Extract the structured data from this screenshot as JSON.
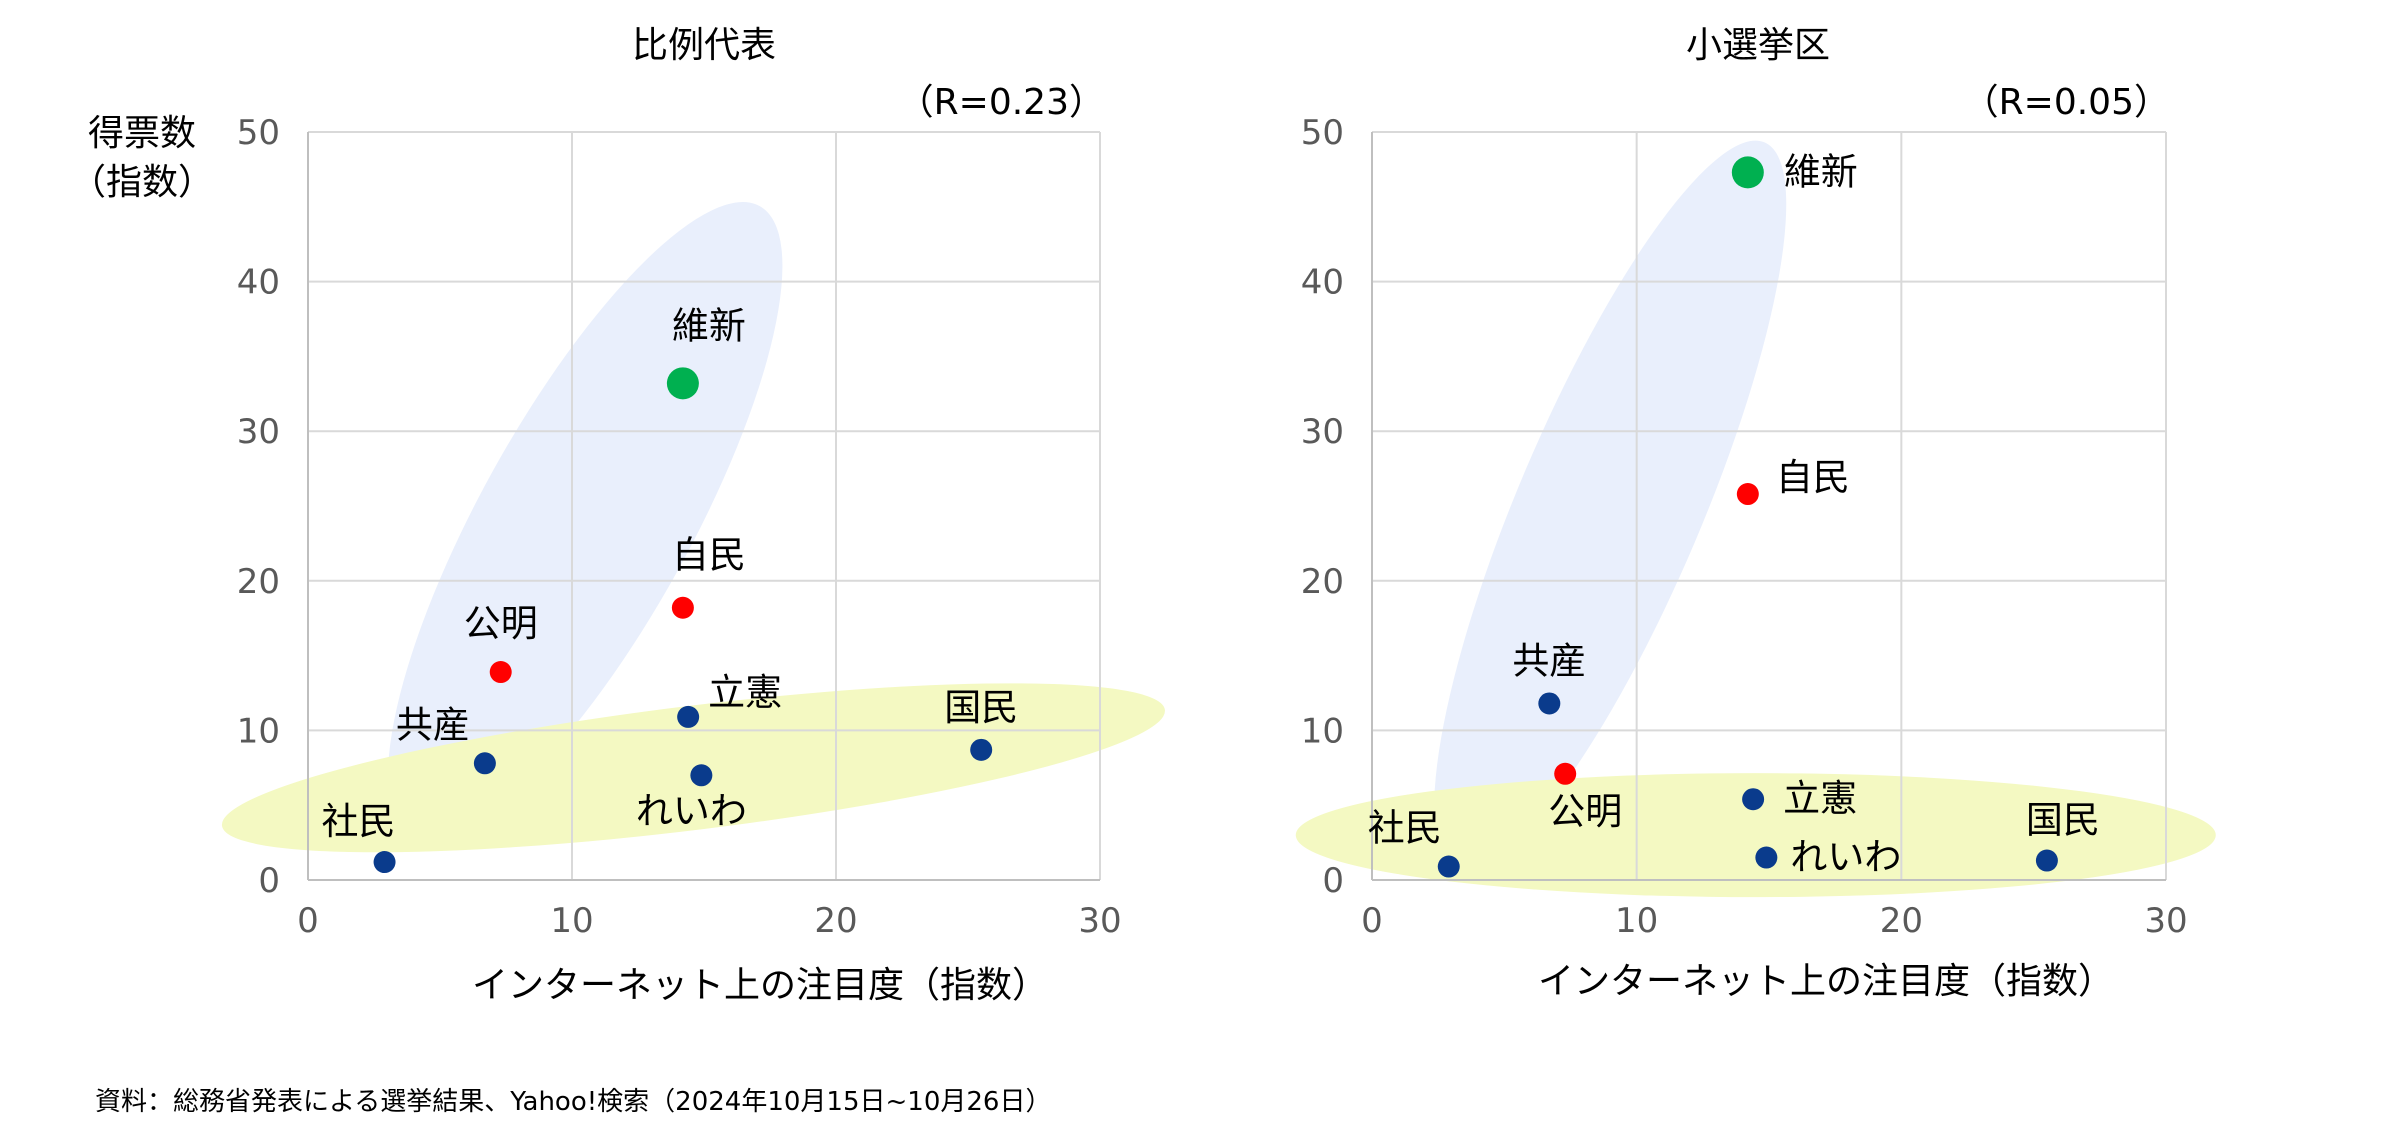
{
  "ylabel_lines": [
    "得票数",
    "（指数）"
  ],
  "source": "資料：総務省発表による選挙結果、Yahoo!検索（2024年10月15日~10月26日）",
  "colors": {
    "navy": "#0a3b8c",
    "red": "#ff0000",
    "green": "#00b050",
    "blue_ellipse": "#e9effc",
    "yellow_ellipse": "#f4f9c2"
  },
  "chart_data": [
    {
      "type": "scatter",
      "title": "比例代表",
      "correlation": "（R=0.23）",
      "xlabel": "インターネット上の注目度（指数）",
      "xlim": [
        0,
        30
      ],
      "ylim": [
        0,
        50
      ],
      "xticks": [
        "0",
        "10",
        "20",
        "30"
      ],
      "yticks": [
        "0",
        "10",
        "20",
        "30",
        "40",
        "50"
      ],
      "points": [
        {
          "label": "社民",
          "x": 2.9,
          "y": 1.2,
          "color": "#0a3b8c",
          "big": false
        },
        {
          "label": "共産",
          "x": 6.7,
          "y": 7.8,
          "color": "#0a3b8c",
          "big": false
        },
        {
          "label": "公明",
          "x": 7.3,
          "y": 13.9,
          "color": "#ff0000",
          "big": false
        },
        {
          "label": "自民",
          "x": 14.2,
          "y": 18.2,
          "color": "#ff0000",
          "big": false
        },
        {
          "label": "維新",
          "x": 14.2,
          "y": 33.2,
          "color": "#00b050",
          "big": true
        },
        {
          "label": "立憲",
          "x": 14.4,
          "y": 10.9,
          "color": "#0a3b8c",
          "big": false
        },
        {
          "label": "れいわ",
          "x": 14.9,
          "y": 7.0,
          "color": "#0a3b8c",
          "big": false
        },
        {
          "label": "国民",
          "x": 25.5,
          "y": 8.7,
          "color": "#0a3b8c",
          "big": false
        }
      ]
    },
    {
      "type": "scatter",
      "title": "小選挙区",
      "correlation": "（R=0.05）",
      "xlabel": "インターネット上の注目度（指数）",
      "xlim": [
        0,
        30
      ],
      "ylim": [
        0,
        50
      ],
      "xticks": [
        "0",
        "10",
        "20",
        "30"
      ],
      "yticks": [
        "0",
        "10",
        "20",
        "30",
        "40",
        "50"
      ],
      "points": [
        {
          "label": "社民",
          "x": 2.9,
          "y": 0.9,
          "color": "#0a3b8c",
          "big": false
        },
        {
          "label": "共産",
          "x": 6.7,
          "y": 11.8,
          "color": "#0a3b8c",
          "big": false
        },
        {
          "label": "公明",
          "x": 7.3,
          "y": 7.1,
          "color": "#ff0000",
          "big": false
        },
        {
          "label": "自民",
          "x": 14.2,
          "y": 25.8,
          "color": "#ff0000",
          "big": false
        },
        {
          "label": "維新",
          "x": 14.2,
          "y": 47.3,
          "color": "#00b050",
          "big": true
        },
        {
          "label": "立憲",
          "x": 14.4,
          "y": 5.4,
          "color": "#0a3b8c",
          "big": false
        },
        {
          "label": "れいわ",
          "x": 14.9,
          "y": 1.5,
          "color": "#0a3b8c",
          "big": false
        },
        {
          "label": "国民",
          "x": 25.5,
          "y": 1.3,
          "color": "#0a3b8c",
          "big": false
        }
      ]
    }
  ]
}
